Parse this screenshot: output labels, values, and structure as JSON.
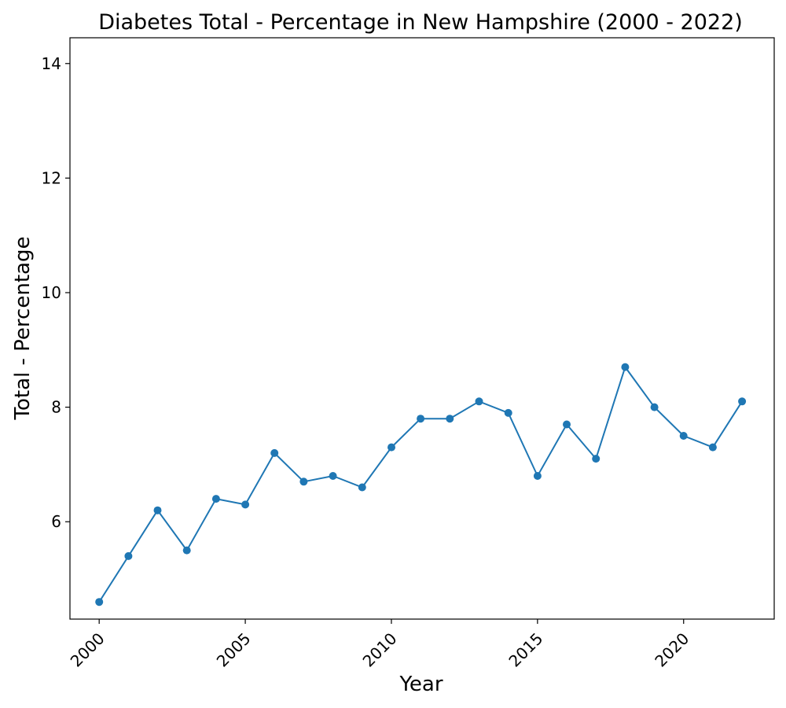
{
  "chart_data": {
    "type": "line",
    "title": "Diabetes Total - Percentage in New Hampshire (2000 - 2022)",
    "xlabel": "Year",
    "ylabel": "Total - Percentage",
    "xlim": [
      1999,
      2023.1
    ],
    "ylim": [
      4.3,
      14.45
    ],
    "xticks": [
      2000,
      2005,
      2010,
      2015,
      2020
    ],
    "yticks": [
      6,
      8,
      10,
      12,
      14
    ],
    "grid": false,
    "legend": "none",
    "series": [
      {
        "color": "#1f77b4",
        "marker": "circle",
        "x": [
          2000,
          2001,
          2002,
          2003,
          2004,
          2005,
          2006,
          2007,
          2008,
          2009,
          2010,
          2011,
          2012,
          2013,
          2014,
          2015,
          2016,
          2017,
          2018,
          2019,
          2020,
          2021,
          2022
        ],
        "y": [
          4.6,
          5.4,
          6.2,
          5.5,
          6.4,
          6.3,
          7.2,
          6.7,
          6.8,
          6.6,
          7.3,
          7.8,
          7.8,
          8.1,
          7.9,
          6.8,
          7.7,
          7.1,
          8.7,
          8.0,
          7.5,
          7.3,
          8.1
        ]
      }
    ]
  }
}
